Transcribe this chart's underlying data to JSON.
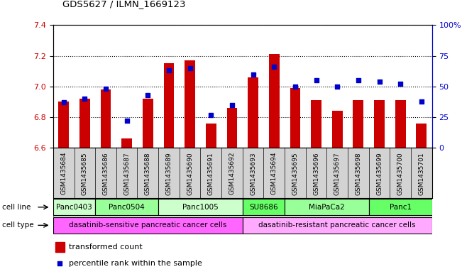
{
  "title": "GDS5627 / ILMN_1669123",
  "samples": [
    "GSM1435684",
    "GSM1435685",
    "GSM1435686",
    "GSM1435687",
    "GSM1435688",
    "GSM1435689",
    "GSM1435690",
    "GSM1435691",
    "GSM1435692",
    "GSM1435693",
    "GSM1435694",
    "GSM1435695",
    "GSM1435696",
    "GSM1435697",
    "GSM1435698",
    "GSM1435699",
    "GSM1435700",
    "GSM1435701"
  ],
  "transformed_count": [
    6.9,
    6.92,
    6.98,
    6.66,
    6.92,
    7.15,
    7.17,
    6.76,
    6.86,
    7.06,
    7.21,
    6.99,
    6.91,
    6.84,
    6.91,
    6.91,
    6.91,
    6.76
  ],
  "percentile_rank": [
    37,
    40,
    48,
    22,
    43,
    63,
    65,
    27,
    35,
    60,
    66,
    50,
    55,
    50,
    55,
    54,
    52,
    38
  ],
  "ylim_left": [
    6.6,
    7.4
  ],
  "ylim_right": [
    0,
    100
  ],
  "yticks_left": [
    6.6,
    6.8,
    7.0,
    7.2,
    7.4
  ],
  "yticks_right": [
    0,
    25,
    50,
    75,
    100
  ],
  "ytick_labels_right": [
    "0",
    "25",
    "50",
    "75",
    "100%"
  ],
  "bar_color": "#cc0000",
  "dot_color": "#0000cc",
  "bar_bottom": 6.6,
  "cell_lines": [
    {
      "name": "Panc0403",
      "start": 0,
      "end": 1,
      "color": "#ccffcc"
    },
    {
      "name": "Panc0504",
      "start": 2,
      "end": 4,
      "color": "#99ff99"
    },
    {
      "name": "Panc1005",
      "start": 5,
      "end": 7,
      "color": "#ccffcc"
    },
    {
      "name": "SU8686",
      "start": 9,
      "end": 10,
      "color": "#66ff66"
    },
    {
      "name": "MiaPaCa2",
      "start": 11,
      "end": 13,
      "color": "#99ff99"
    },
    {
      "name": "Panc1",
      "start": 15,
      "end": 17,
      "color": "#66ff66"
    }
  ],
  "cell_line_spans": [
    {
      "name": "Panc0403",
      "start": 0,
      "end": 2,
      "color": "#ccffcc"
    },
    {
      "name": "Panc0504",
      "start": 2,
      "end": 5,
      "color": "#99ff99"
    },
    {
      "name": "Panc1005",
      "start": 5,
      "end": 9,
      "color": "#ccffcc"
    },
    {
      "name": "SU8686",
      "start": 9,
      "end": 11,
      "color": "#66ff66"
    },
    {
      "name": "MiaPaCa2",
      "start": 11,
      "end": 15,
      "color": "#99ff99"
    },
    {
      "name": "Panc1",
      "start": 15,
      "end": 18,
      "color": "#66ff66"
    }
  ],
  "cell_types": [
    {
      "name": "dasatinib-sensitive pancreatic cancer cells",
      "start": 0,
      "end": 9,
      "color": "#ff66ff"
    },
    {
      "name": "dasatinib-resistant pancreatic cancer cells",
      "start": 9,
      "end": 18,
      "color": "#ffaaff"
    }
  ],
  "legend_bar_label": "transformed count",
  "legend_dot_label": "percentile rank within the sample",
  "cell_line_label": "cell line",
  "cell_type_label": "cell type",
  "bg_color": "#ffffff",
  "axis_color_left": "#cc0000",
  "axis_color_right": "#0000cc",
  "tick_bg_color": "#d3d3d3"
}
